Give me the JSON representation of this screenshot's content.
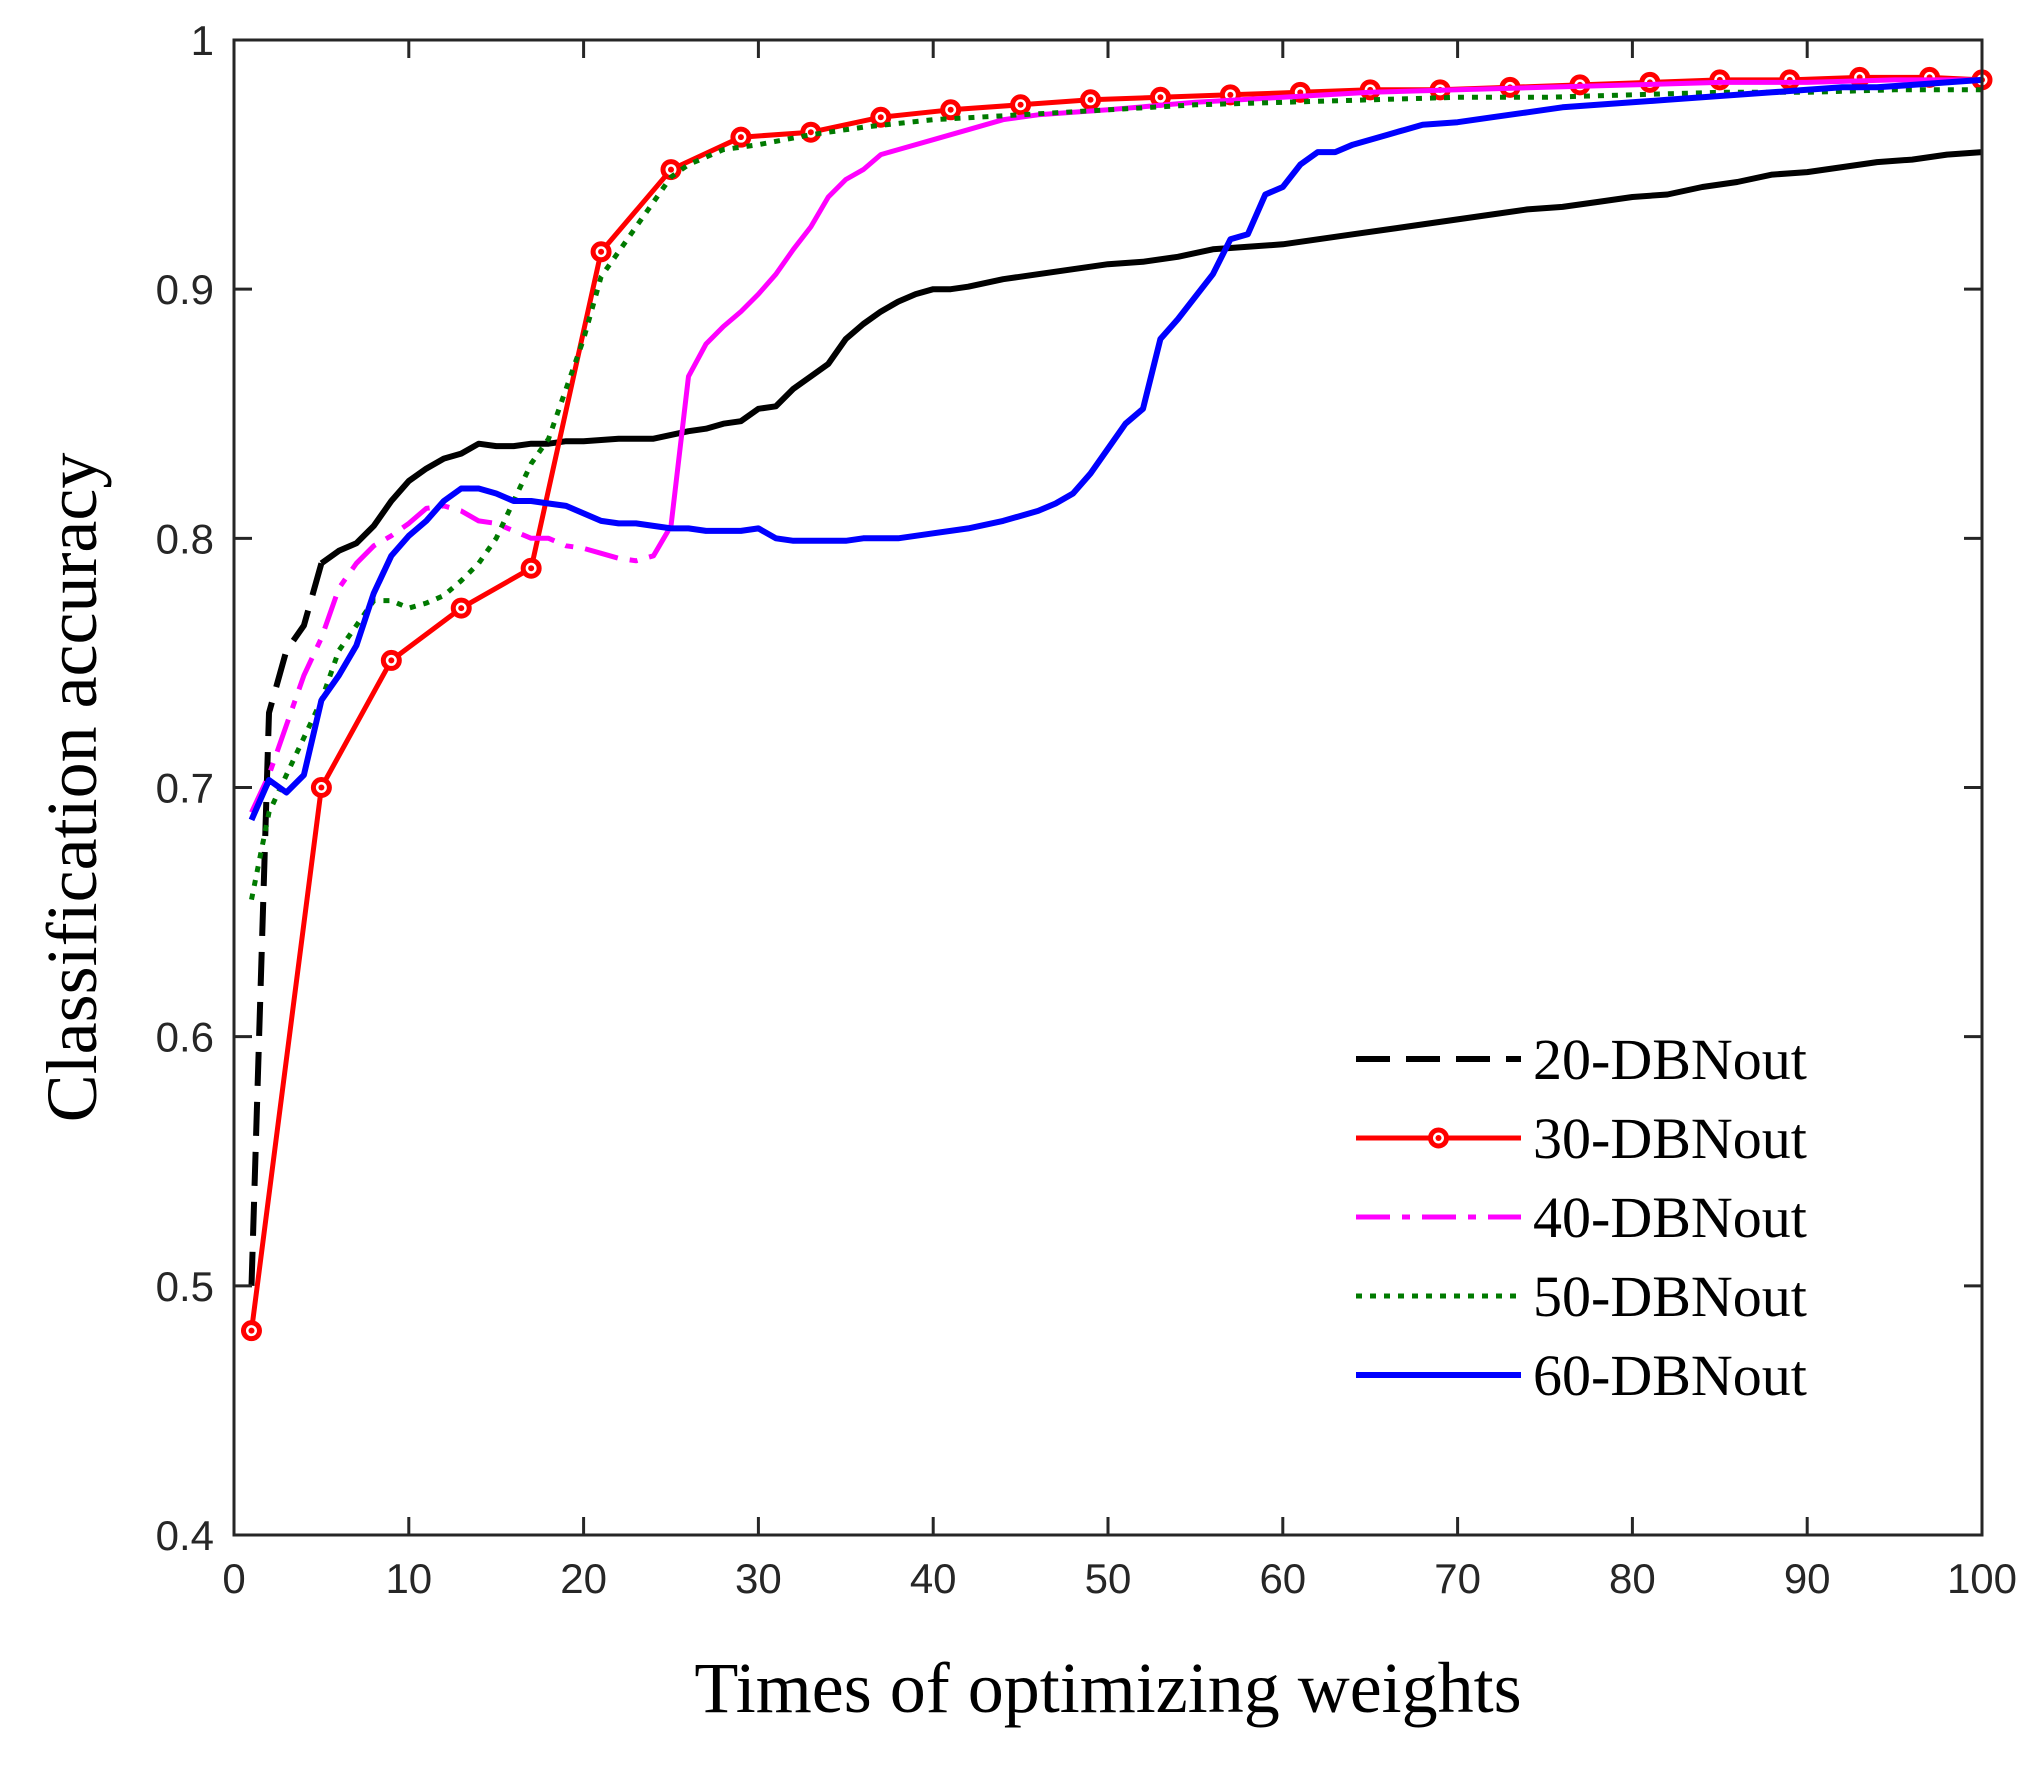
{
  "chart_data": {
    "type": "line",
    "xlabel": "Times of optimizing weights",
    "ylabel": "Classification accuracy",
    "xlim": [
      0,
      100
    ],
    "ylim": [
      0.4,
      1
    ],
    "xticks": [
      0,
      10,
      20,
      30,
      40,
      50,
      60,
      70,
      80,
      90,
      100
    ],
    "yticks": [
      0.4,
      0.5,
      0.6,
      0.7,
      0.8,
      0.9,
      1
    ],
    "xtick_labels": [
      "0",
      "10",
      "20",
      "30",
      "40",
      "50",
      "60",
      "70",
      "80",
      "90",
      "100"
    ],
    "ytick_labels": [
      "0.4",
      "0.5",
      "0.6",
      "0.7",
      "0.8",
      "0.9",
      "1"
    ],
    "grid": false,
    "legend_position": "bottom-right",
    "series": [
      {
        "name": "20-DBNout",
        "color": "#000000",
        "style": "dashed-then-solid",
        "x": [
          1,
          2,
          3,
          4,
          5,
          6,
          7,
          8,
          9,
          10,
          11,
          12,
          13,
          14,
          15,
          16,
          17,
          18,
          19,
          20,
          22,
          24,
          26,
          27,
          28,
          29,
          30,
          31,
          32,
          33,
          34,
          35,
          36,
          37,
          38,
          39,
          40,
          41,
          42,
          44,
          46,
          48,
          50,
          52,
          54,
          56,
          58,
          60,
          62,
          64,
          66,
          68,
          70,
          72,
          74,
          76,
          78,
          80,
          82,
          84,
          86,
          88,
          90,
          92,
          94,
          96,
          98,
          100
        ],
        "y": [
          0.5,
          0.73,
          0.755,
          0.765,
          0.79,
          0.795,
          0.798,
          0.805,
          0.815,
          0.823,
          0.828,
          0.832,
          0.834,
          0.838,
          0.837,
          0.837,
          0.838,
          0.838,
          0.839,
          0.839,
          0.84,
          0.84,
          0.843,
          0.844,
          0.846,
          0.847,
          0.852,
          0.853,
          0.86,
          0.865,
          0.87,
          0.88,
          0.886,
          0.891,
          0.895,
          0.898,
          0.9,
          0.9,
          0.901,
          0.904,
          0.906,
          0.908,
          0.91,
          0.911,
          0.913,
          0.916,
          0.917,
          0.918,
          0.92,
          0.922,
          0.924,
          0.926,
          0.928,
          0.93,
          0.932,
          0.933,
          0.935,
          0.937,
          0.938,
          0.941,
          0.943,
          0.946,
          0.947,
          0.949,
          0.951,
          0.952,
          0.954,
          0.955
        ]
      },
      {
        "name": "30-DBNout",
        "color": "#ff0000",
        "style": "solid-marker",
        "x": [
          1,
          5,
          9,
          13,
          17,
          21,
          25,
          29,
          33,
          37,
          41,
          45,
          49,
          53,
          57,
          61,
          65,
          69,
          73,
          77,
          81,
          85,
          89,
          93,
          97,
          100
        ],
        "y": [
          0.482,
          0.7,
          0.751,
          0.772,
          0.788,
          0.915,
          0.948,
          0.961,
          0.963,
          0.969,
          0.972,
          0.974,
          0.976,
          0.977,
          0.978,
          0.979,
          0.98,
          0.98,
          0.981,
          0.982,
          0.983,
          0.984,
          0.984,
          0.985,
          0.985,
          0.984
        ]
      },
      {
        "name": "40-DBNout",
        "color": "#ff00ff",
        "style": "dashdot-then-solid",
        "x": [
          1,
          2,
          3,
          4,
          5,
          6,
          7,
          8,
          9,
          10,
          11,
          12,
          13,
          14,
          15,
          16,
          17,
          18,
          19,
          20,
          21,
          22,
          23,
          24,
          25,
          26,
          27,
          28,
          29,
          30,
          31,
          32,
          33,
          34,
          35,
          36,
          37,
          38,
          40,
          42,
          44,
          46,
          48,
          50,
          55,
          60,
          65,
          70,
          75,
          80,
          85,
          90,
          95,
          100
        ],
        "y": [
          0.69,
          0.705,
          0.725,
          0.745,
          0.76,
          0.78,
          0.79,
          0.797,
          0.801,
          0.806,
          0.812,
          0.813,
          0.811,
          0.807,
          0.806,
          0.803,
          0.8,
          0.8,
          0.797,
          0.796,
          0.794,
          0.792,
          0.791,
          0.793,
          0.805,
          0.865,
          0.878,
          0.885,
          0.891,
          0.898,
          0.906,
          0.916,
          0.925,
          0.937,
          0.944,
          0.948,
          0.954,
          0.956,
          0.96,
          0.964,
          0.968,
          0.97,
          0.971,
          0.972,
          0.975,
          0.977,
          0.979,
          0.98,
          0.981,
          0.982,
          0.983,
          0.983,
          0.984,
          0.984
        ]
      },
      {
        "name": "50-DBNout",
        "color": "#007a00",
        "style": "dotted",
        "x": [
          1,
          2,
          3,
          4,
          5,
          6,
          7,
          8,
          9,
          10,
          11,
          12,
          13,
          14,
          15,
          16,
          17,
          18,
          19,
          20,
          21,
          22,
          23,
          24,
          25,
          26,
          27,
          28,
          30,
          33,
          36,
          40,
          45,
          50,
          55,
          60,
          65,
          70,
          75,
          80,
          85,
          90,
          95,
          100
        ],
        "y": [
          0.655,
          0.69,
          0.705,
          0.72,
          0.735,
          0.755,
          0.765,
          0.775,
          0.775,
          0.772,
          0.774,
          0.777,
          0.783,
          0.79,
          0.8,
          0.815,
          0.83,
          0.84,
          0.86,
          0.88,
          0.905,
          0.915,
          0.925,
          0.935,
          0.945,
          0.95,
          0.953,
          0.956,
          0.958,
          0.962,
          0.965,
          0.968,
          0.97,
          0.972,
          0.974,
          0.975,
          0.976,
          0.977,
          0.977,
          0.978,
          0.979,
          0.979,
          0.98,
          0.98
        ]
      },
      {
        "name": "60-DBNout",
        "color": "#0000ff",
        "style": "solid",
        "x": [
          1,
          2,
          3,
          4,
          5,
          6,
          7,
          8,
          9,
          10,
          11,
          12,
          13,
          14,
          15,
          16,
          17,
          18,
          19,
          20,
          21,
          22,
          23,
          24,
          25,
          26,
          27,
          28,
          29,
          30,
          31,
          32,
          33,
          34,
          35,
          36,
          37,
          38,
          39,
          40,
          42,
          44,
          46,
          47,
          48,
          49,
          50,
          51,
          52,
          53,
          54,
          55,
          56,
          57,
          58,
          59,
          60,
          61,
          62,
          63,
          64,
          65,
          66,
          67,
          68,
          70,
          72,
          74,
          76,
          78,
          80,
          82,
          84,
          86,
          88,
          90,
          92,
          94,
          96,
          98,
          100
        ],
        "y": [
          0.687,
          0.703,
          0.698,
          0.705,
          0.735,
          0.745,
          0.757,
          0.778,
          0.793,
          0.801,
          0.807,
          0.815,
          0.82,
          0.82,
          0.818,
          0.815,
          0.815,
          0.814,
          0.813,
          0.81,
          0.807,
          0.806,
          0.806,
          0.805,
          0.804,
          0.804,
          0.803,
          0.803,
          0.803,
          0.804,
          0.8,
          0.799,
          0.799,
          0.799,
          0.799,
          0.8,
          0.8,
          0.8,
          0.801,
          0.802,
          0.804,
          0.807,
          0.811,
          0.814,
          0.818,
          0.826,
          0.836,
          0.846,
          0.852,
          0.88,
          0.888,
          0.897,
          0.906,
          0.92,
          0.922,
          0.938,
          0.941,
          0.95,
          0.955,
          0.955,
          0.958,
          0.96,
          0.962,
          0.964,
          0.966,
          0.967,
          0.969,
          0.971,
          0.973,
          0.974,
          0.975,
          0.976,
          0.977,
          0.978,
          0.979,
          0.98,
          0.981,
          0.981,
          0.982,
          0.983,
          0.984
        ]
      }
    ]
  }
}
